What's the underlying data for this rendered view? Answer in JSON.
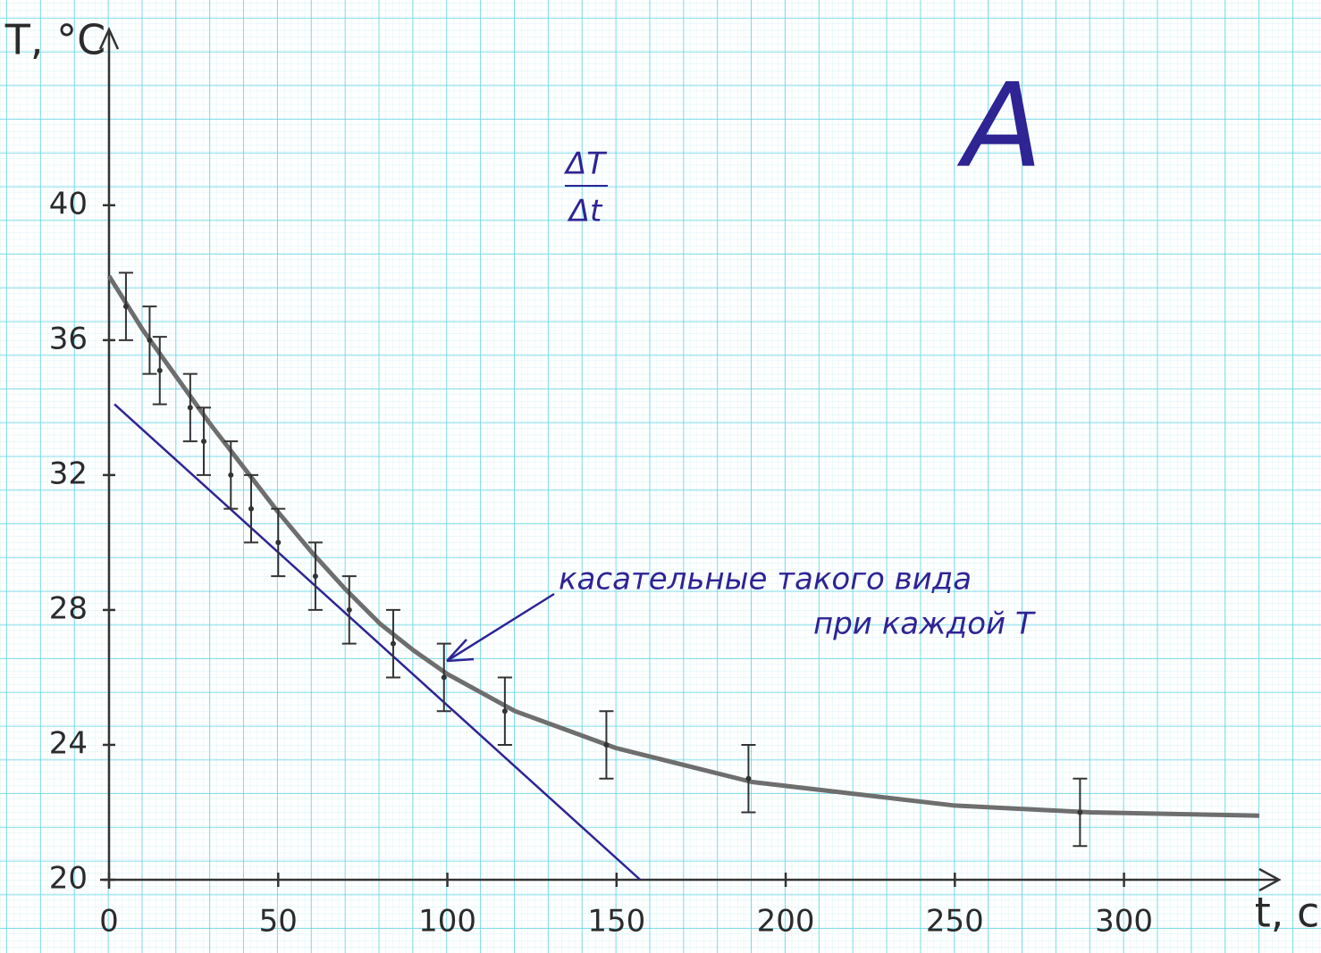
{
  "chart_data": {
    "type": "scatter",
    "ylabel": "T, °C",
    "xlabel": "t, c",
    "title": "A",
    "formula": {
      "numerator": "ΔT",
      "denominator": "Δt"
    },
    "annotation": [
      "касательные такого вида",
      "при каждой T"
    ],
    "xlim": [
      0,
      340
    ],
    "ylim": [
      20,
      45
    ],
    "xticks": [
      0,
      50,
      100,
      150,
      200,
      250,
      300
    ],
    "yticks": [
      20,
      24,
      28,
      32,
      36,
      40
    ],
    "grid": true,
    "points": {
      "color": "#333333",
      "x": [
        5,
        12,
        15,
        24,
        28,
        36,
        42,
        50,
        61,
        71,
        84,
        99,
        117,
        147,
        189,
        287
      ],
      "values": [
        37.0,
        36.0,
        35.1,
        34.0,
        33.0,
        32.0,
        31.0,
        30.0,
        29.0,
        28.0,
        27.0,
        26.0,
        25.0,
        24.0,
        23.0,
        22.0
      ],
      "errors": [
        1,
        1,
        1,
        1,
        1,
        1,
        1,
        1,
        1,
        1,
        1,
        1,
        1,
        1,
        1,
        1
      ]
    },
    "curve": {
      "color": "#6e6e6e",
      "x": [
        0,
        10,
        20,
        30,
        40,
        50,
        60,
        70,
        80,
        90,
        100,
        120,
        150,
        190,
        250,
        290,
        340
      ],
      "values": [
        37.9,
        36.3,
        34.9,
        33.5,
        32.2,
        30.9,
        29.7,
        28.6,
        27.6,
        26.8,
        26.1,
        25.0,
        23.9,
        22.9,
        22.2,
        22.0,
        21.9
      ]
    },
    "tangent": {
      "color": "#2e2494",
      "x": [
        1.6,
        157
      ],
      "values": [
        34.1,
        20
      ]
    }
  }
}
